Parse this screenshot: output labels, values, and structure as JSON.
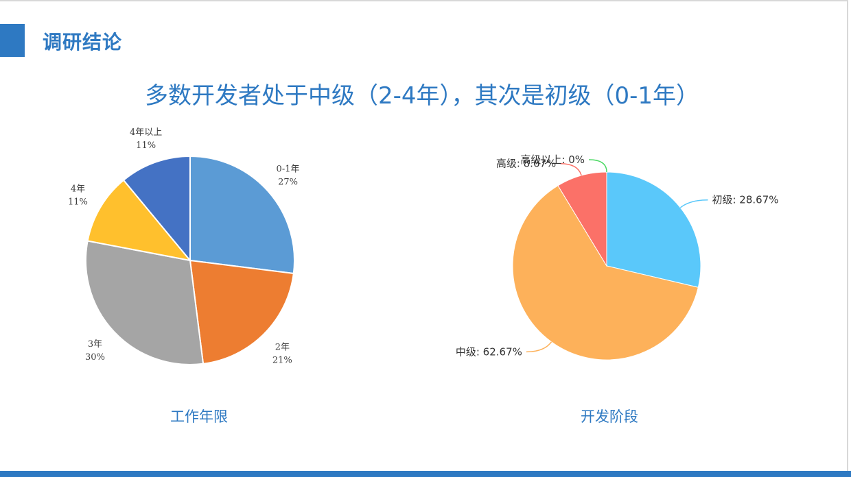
{
  "header": {
    "title": "调研结论"
  },
  "subtitle": "多数开发者处于中级（2-4年），其次是初级（0-1年）",
  "chart_data": [
    {
      "type": "pie",
      "title": "工作年限",
      "slices": [
        {
          "label": "0-1年",
          "value_label": "27%",
          "value": 27,
          "color": "#5b9bd5"
        },
        {
          "label": "2年",
          "value_label": "21%",
          "value": 21,
          "color": "#ed7d31"
        },
        {
          "label": "3年",
          "value_label": "30%",
          "value": 30,
          "color": "#a5a5a5"
        },
        {
          "label": "4年",
          "value_label": "11%",
          "value": 11,
          "color": "#ffc02d"
        },
        {
          "label": "4年以上",
          "value_label": "11%",
          "value": 11,
          "color": "#4472c4"
        }
      ]
    },
    {
      "type": "pie",
      "title": "开发阶段",
      "slices": [
        {
          "label": "初级: 28.67%",
          "value": 28.67,
          "color": "#5ac8fa"
        },
        {
          "label": "中级: 62.67%",
          "value": 62.67,
          "color": "#fdb15a"
        },
        {
          "label": "高级: 8.67%",
          "value": 8.67,
          "color": "#fb7168"
        },
        {
          "label": "高级以上: 0%",
          "value": 0,
          "color": "#4cd964"
        }
      ]
    }
  ]
}
